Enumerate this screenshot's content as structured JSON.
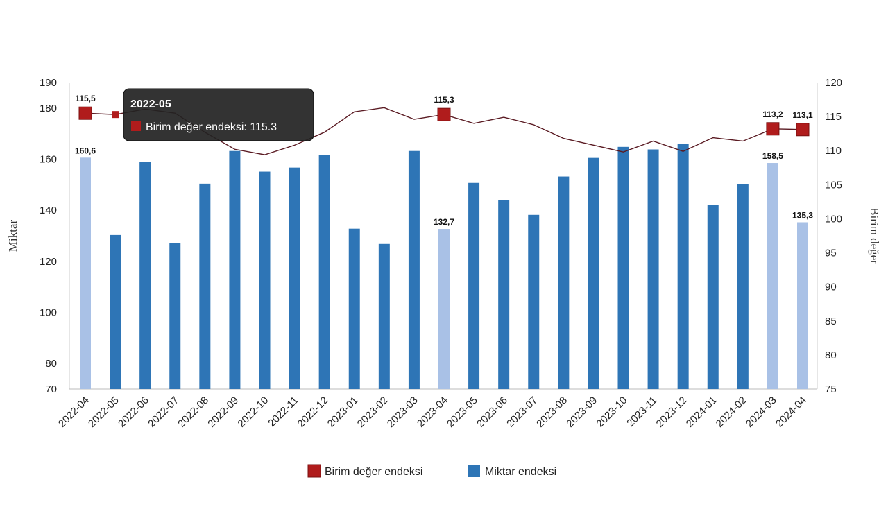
{
  "chart_data": {
    "type": "bar+line",
    "categories": [
      "2022-04",
      "2022-05",
      "2022-06",
      "2022-07",
      "2022-08",
      "2022-09",
      "2022-10",
      "2022-11",
      "2022-12",
      "2023-01",
      "2023-02",
      "2023-03",
      "2023-04",
      "2023-05",
      "2023-06",
      "2023-07",
      "2023-08",
      "2023-09",
      "2023-10",
      "2023-11",
      "2023-12",
      "2024-01",
      "2024-02",
      "2024-03",
      "2024-04"
    ],
    "left_axis": {
      "label": "Miktar",
      "range": [
        70,
        190
      ],
      "ticks": [
        70,
        80,
        100,
        120,
        140,
        160,
        180,
        190
      ]
    },
    "right_axis": {
      "label": "Birim değer",
      "range": [
        75,
        120
      ],
      "ticks": [
        75,
        80,
        85,
        90,
        95,
        100,
        105,
        110,
        115,
        120
      ]
    },
    "series": [
      {
        "name": "Miktar endeksi",
        "type": "bar",
        "axis": "left",
        "color": "#2e75b6",
        "highlight_color": "#a9c1e6",
        "values": [
          160.6,
          130.3,
          158.9,
          127.1,
          150.4,
          163.2,
          155.1,
          156.7,
          161.6,
          132.8,
          126.8,
          163.2,
          132.7,
          150.7,
          143.9,
          138.2,
          153.2,
          160.5,
          164.8,
          163.8,
          165.9,
          142.0,
          150.2,
          158.5,
          135.3
        ],
        "labeled": {
          "2022-04": "160,6",
          "2023-04": "132,7",
          "2024-03": "158,5",
          "2024-04": "135,3"
        }
      },
      {
        "name": "Birim değer endeksi",
        "type": "line",
        "axis": "right",
        "color": "#b01c1c",
        "line_color": "#5a1a22",
        "values": [
          115.5,
          115.3,
          116.1,
          115.5,
          112.7,
          110.2,
          109.4,
          110.8,
          112.7,
          115.7,
          116.3,
          114.6,
          115.3,
          114.0,
          114.9,
          113.8,
          111.8,
          110.8,
          109.8,
          111.4,
          109.9,
          111.9,
          111.4,
          113.2,
          113.1
        ],
        "labeled": {
          "2022-04": "115,5",
          "2023-04": "115,3",
          "2024-03": "113,2",
          "2024-04": "113,1"
        }
      }
    ],
    "legend": {
      "position": "bottom",
      "items": [
        "Birim değer endeksi",
        "Miktar endeksi"
      ]
    },
    "tooltip": {
      "category": "2022-05",
      "text": "Birim değer endeksi: 115.3"
    }
  }
}
